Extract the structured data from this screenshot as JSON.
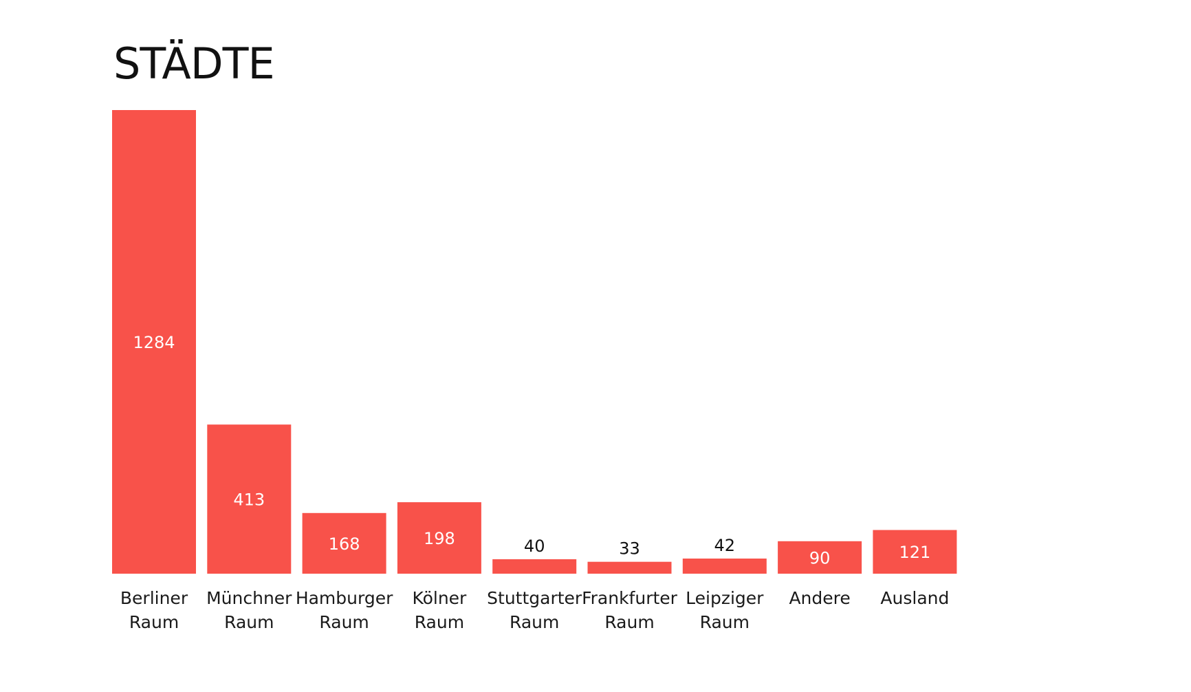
{
  "chart_data": {
    "type": "bar",
    "title": "STÄDTE",
    "categories": [
      [
        "Berliner",
        "Raum"
      ],
      [
        "Münchner",
        "Raum"
      ],
      [
        "Hamburger",
        "Raum"
      ],
      [
        "Kölner",
        "Raum"
      ],
      [
        "Stuttgarter",
        "Raum"
      ],
      [
        "Frankfurter",
        "Raum"
      ],
      [
        "Leipziger",
        "Raum"
      ],
      [
        "Andere"
      ],
      [
        "Ausland"
      ]
    ],
    "values": [
      1284,
      413,
      168,
      198,
      40,
      33,
      42,
      90,
      121
    ],
    "ylim": [
      0,
      1284
    ],
    "grid": false,
    "legend": "none",
    "bar_color": "#F8524A",
    "label_inside_color": "#ffffff",
    "label_outside_color": "#111111"
  }
}
